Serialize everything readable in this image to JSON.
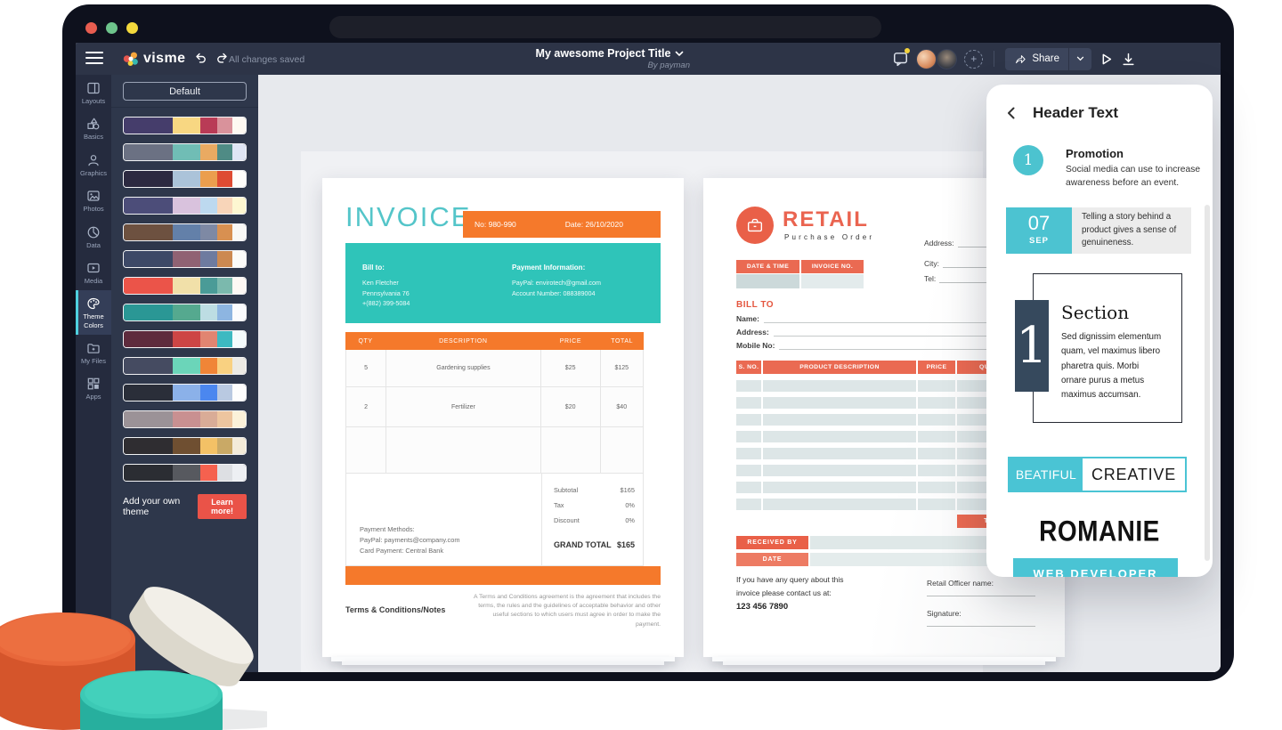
{
  "topbar": {
    "logo_text": "visme",
    "autosave_status": "All changes saved",
    "project_title": "My awesome Project Title",
    "project_byline": "By payman",
    "share_label": "Share"
  },
  "sidebar": {
    "items": [
      {
        "label": "Layouts",
        "icon": "layouts-icon",
        "active": false
      },
      {
        "label": "Basics",
        "icon": "basics-icon",
        "active": false
      },
      {
        "label": "Graphics",
        "icon": "graphics-icon",
        "active": false
      },
      {
        "label": "Photos",
        "icon": "photos-icon",
        "active": false
      },
      {
        "label": "Data",
        "icon": "data-icon",
        "active": false
      },
      {
        "label": "Media",
        "icon": "media-icon",
        "active": false
      },
      {
        "label": "Theme Colors",
        "icon": "theme-colors-icon",
        "active": true
      },
      {
        "label": "My Files",
        "icon": "my-files-icon",
        "active": false
      },
      {
        "label": "Apps",
        "icon": "apps-icon",
        "active": false
      }
    ]
  },
  "themes_panel": {
    "default_button": "Default",
    "palettes": [
      [
        "#453d6b",
        "#f8d782",
        "#b93b56",
        "#d9929b",
        "#fdf9f2"
      ],
      [
        "#6b7183",
        "#70bdb5",
        "#e9aa62",
        "#4f8b85",
        "#dfe5f4"
      ],
      [
        "#2c2940",
        "#abc3d9",
        "#eb9e4e",
        "#de4b33",
        "#fefdfb"
      ],
      [
        "#4c4d79",
        "#d9c2dd",
        "#bdd9ef",
        "#f8d5b9",
        "#fdf7d1"
      ],
      [
        "#6d5140",
        "#6380a9",
        "#7e89a4",
        "#d89051",
        "#f8f8f6"
      ],
      [
        "#3d4967",
        "#906273",
        "#6e7b9f",
        "#cc8951",
        "#fbfbf9"
      ],
      [
        "#eb5449",
        "#f1e0a9",
        "#4a9b97",
        "#7bb9ad",
        "#fdf8f4"
      ],
      [
        "#2a9795",
        "#55a98f",
        "#bddde3",
        "#8db5e1",
        "#fafbfd"
      ],
      [
        "#5e2b3d",
        "#cd4545",
        "#e18571",
        "#3db9c1",
        "#f4fbfc"
      ],
      [
        "#454b61",
        "#6bd5b9",
        "#f08537",
        "#f9d181",
        "#eceae4"
      ],
      [
        "#2a2e39",
        "#8bb1e9",
        "#4b87ef",
        "#b9c9e1",
        "#fdfdfd"
      ],
      [
        "#9b9297",
        "#c99091",
        "#d9ac97",
        "#edc59f",
        "#fbf1d9"
      ],
      [
        "#2f2d31",
        "#6f4f31",
        "#f3c166",
        "#c9a966",
        "#f3ebd9"
      ],
      [
        "#2b2d33",
        "#57595f",
        "#f5614f",
        "#dddfe3",
        "#edeff3"
      ]
    ],
    "add_theme_text": "Add your own theme",
    "learn_more_button": "Learn more!"
  },
  "invoice_doc": {
    "title": "INVOICE",
    "number": "No: 980-990",
    "date": "Date: 26/10/2020",
    "bill_to_label": "Bill to:",
    "bill_to_lines": [
      "Ken Fletcher",
      "Pennsylvania 76",
      "+(882) 399-5084"
    ],
    "payment_info_label": "Payment Information:",
    "payment_info_lines": [
      "PayPal: envirotech@gmail.com",
      "Account Number: 088389004"
    ],
    "table": {
      "headers": [
        "QTY",
        "DESCRIPTION",
        "PRICE",
        "TOTAL"
      ],
      "rows": [
        [
          "5",
          "Gardening supplies",
          "$25",
          "$125"
        ],
        [
          "2",
          "Fertilizer",
          "$20",
          "$40"
        ],
        [
          "",
          "",
          "",
          ""
        ]
      ]
    },
    "payment_methods_lines": [
      "Payment Methods:",
      "PayPal: payments@company.com",
      "Card Payment: Central Bank"
    ],
    "totals": [
      {
        "label": "Subtotal",
        "value": "$165"
      },
      {
        "label": "Tax",
        "value": "0%"
      },
      {
        "label": "Discount",
        "value": "0%"
      }
    ],
    "grand_total_label": "GRAND TOTAL",
    "grand_total_value": "$165",
    "terms_label": "Terms & Conditions/Notes",
    "terms_text": "A Terms and Conditions agreement is the agreement that includes the terms, the rules and the guidelines of acceptable behavior and other useful sections to which users must agree in order to make the payment."
  },
  "retail_doc": {
    "title": "RETAIL",
    "subtitle": "Purchase Order",
    "contact_fields": [
      "Address:",
      "City:",
      "Tel:"
    ],
    "mini_table_headers": [
      "DATE & TIME",
      "INVOICE NO."
    ],
    "bill_to_label": "BILL TO",
    "bill_to_fields": [
      "Name:",
      "Address:",
      "Mobile No:"
    ],
    "table_headers": [
      "S. NO.",
      "PRODUCT DESCRIPTION",
      "PRICE",
      "QUANTITY"
    ],
    "stripe_row_count": 8,
    "total_label": "TOTAL",
    "received_by_label": "RECEIVED BY",
    "date_label": "DATE",
    "query_lines": [
      "If you have any query about this",
      "invoice please contact us at:"
    ],
    "query_phone": "123 456 7890",
    "officer_label": "Retail Officer name:",
    "signature_label": "Signature:"
  },
  "header_text_panel": {
    "title": "Header Text",
    "promotion": {
      "number": "1",
      "title": "Promotion",
      "description": "Social media can use to increase awareness before an event."
    },
    "date_block": {
      "day": "07",
      "month": "SEP",
      "text": "Telling a story behind a product gives a sense of genuineness."
    },
    "section_block": {
      "number": "1",
      "title": "Section",
      "text": "Sed dignissim elementum quam, vel maximus libero pharetra quis. Morbi ornare purus a metus maximus accumsan."
    },
    "logo_block": {
      "left": "BEATIFUL",
      "right": "CREATIVE"
    },
    "name_block": "ROMANIE",
    "role_block": "WEB DEVELOPER"
  },
  "accent_colors": {
    "invoice_teal": "#2fc4b9",
    "invoice_orange": "#f5792b",
    "retail_coral": "#e96048",
    "panel_teal": "#4ac4d4",
    "learn_more_red": "#ea5348",
    "section_navy": "#36495d",
    "sidebar_active_teal": "#4fd0de"
  }
}
